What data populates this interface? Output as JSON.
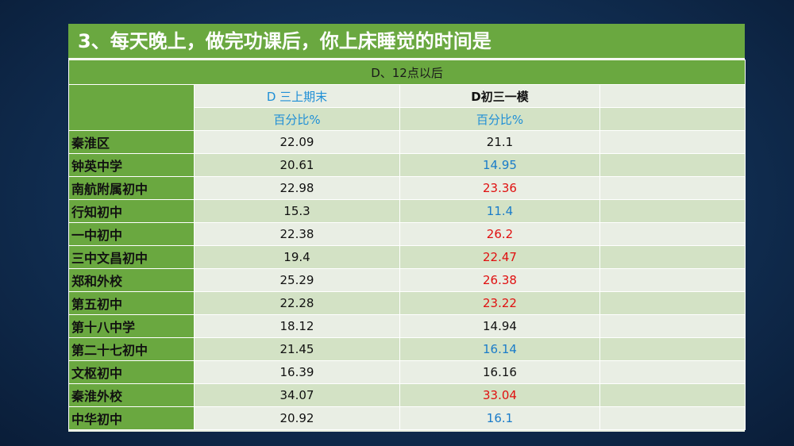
{
  "title": "3、每天晚上，做完功课后，你上床睡觉的时间是",
  "option_header": "D、12点以后",
  "columns": [
    {
      "name": "D  三上期末",
      "unit": "百分比%"
    },
    {
      "name": "D初三一模",
      "unit": "百分比%"
    }
  ],
  "colors": {
    "background": "#123258",
    "green": "#6aa840",
    "blue": "#1a7cc9",
    "red": "#e01010"
  },
  "rows": [
    {
      "label": "秦淮区",
      "v1": "22.09",
      "v2": "21.1",
      "v2_color": "black"
    },
    {
      "label": "钟英中学",
      "v1": "20.61",
      "v2": "14.95",
      "v2_color": "blue"
    },
    {
      "label": "南航附属初中",
      "v1": "22.98",
      "v2": "23.36",
      "v2_color": "red"
    },
    {
      "label": "行知初中",
      "v1": "15.3",
      "v2": "11.4",
      "v2_color": "blue"
    },
    {
      "label": "一中初中",
      "v1": "22.38",
      "v2": "26.2",
      "v2_color": "red"
    },
    {
      "label": "三中文昌初中",
      "v1": "19.4",
      "v2": "22.47",
      "v2_color": "red"
    },
    {
      "label": "郑和外校",
      "v1": "25.29",
      "v2": "26.38",
      "v2_color": "red"
    },
    {
      "label": "第五初中",
      "v1": "22.28",
      "v2": "23.22",
      "v2_color": "red"
    },
    {
      "label": "第十八中学",
      "v1": "18.12",
      "v2": "14.94",
      "v2_color": "black"
    },
    {
      "label": "第二十七初中",
      "v1": "21.45",
      "v2": "16.14",
      "v2_color": "blue"
    },
    {
      "label": "文枢初中",
      "v1": "16.39",
      "v2": "16.16",
      "v2_color": "black"
    },
    {
      "label": "秦淮外校",
      "v1": "34.07",
      "v2": "33.04",
      "v2_color": "red"
    },
    {
      "label": "中华初中",
      "v1": "20.92",
      "v2": "16.1",
      "v2_color": "blue"
    }
  ]
}
